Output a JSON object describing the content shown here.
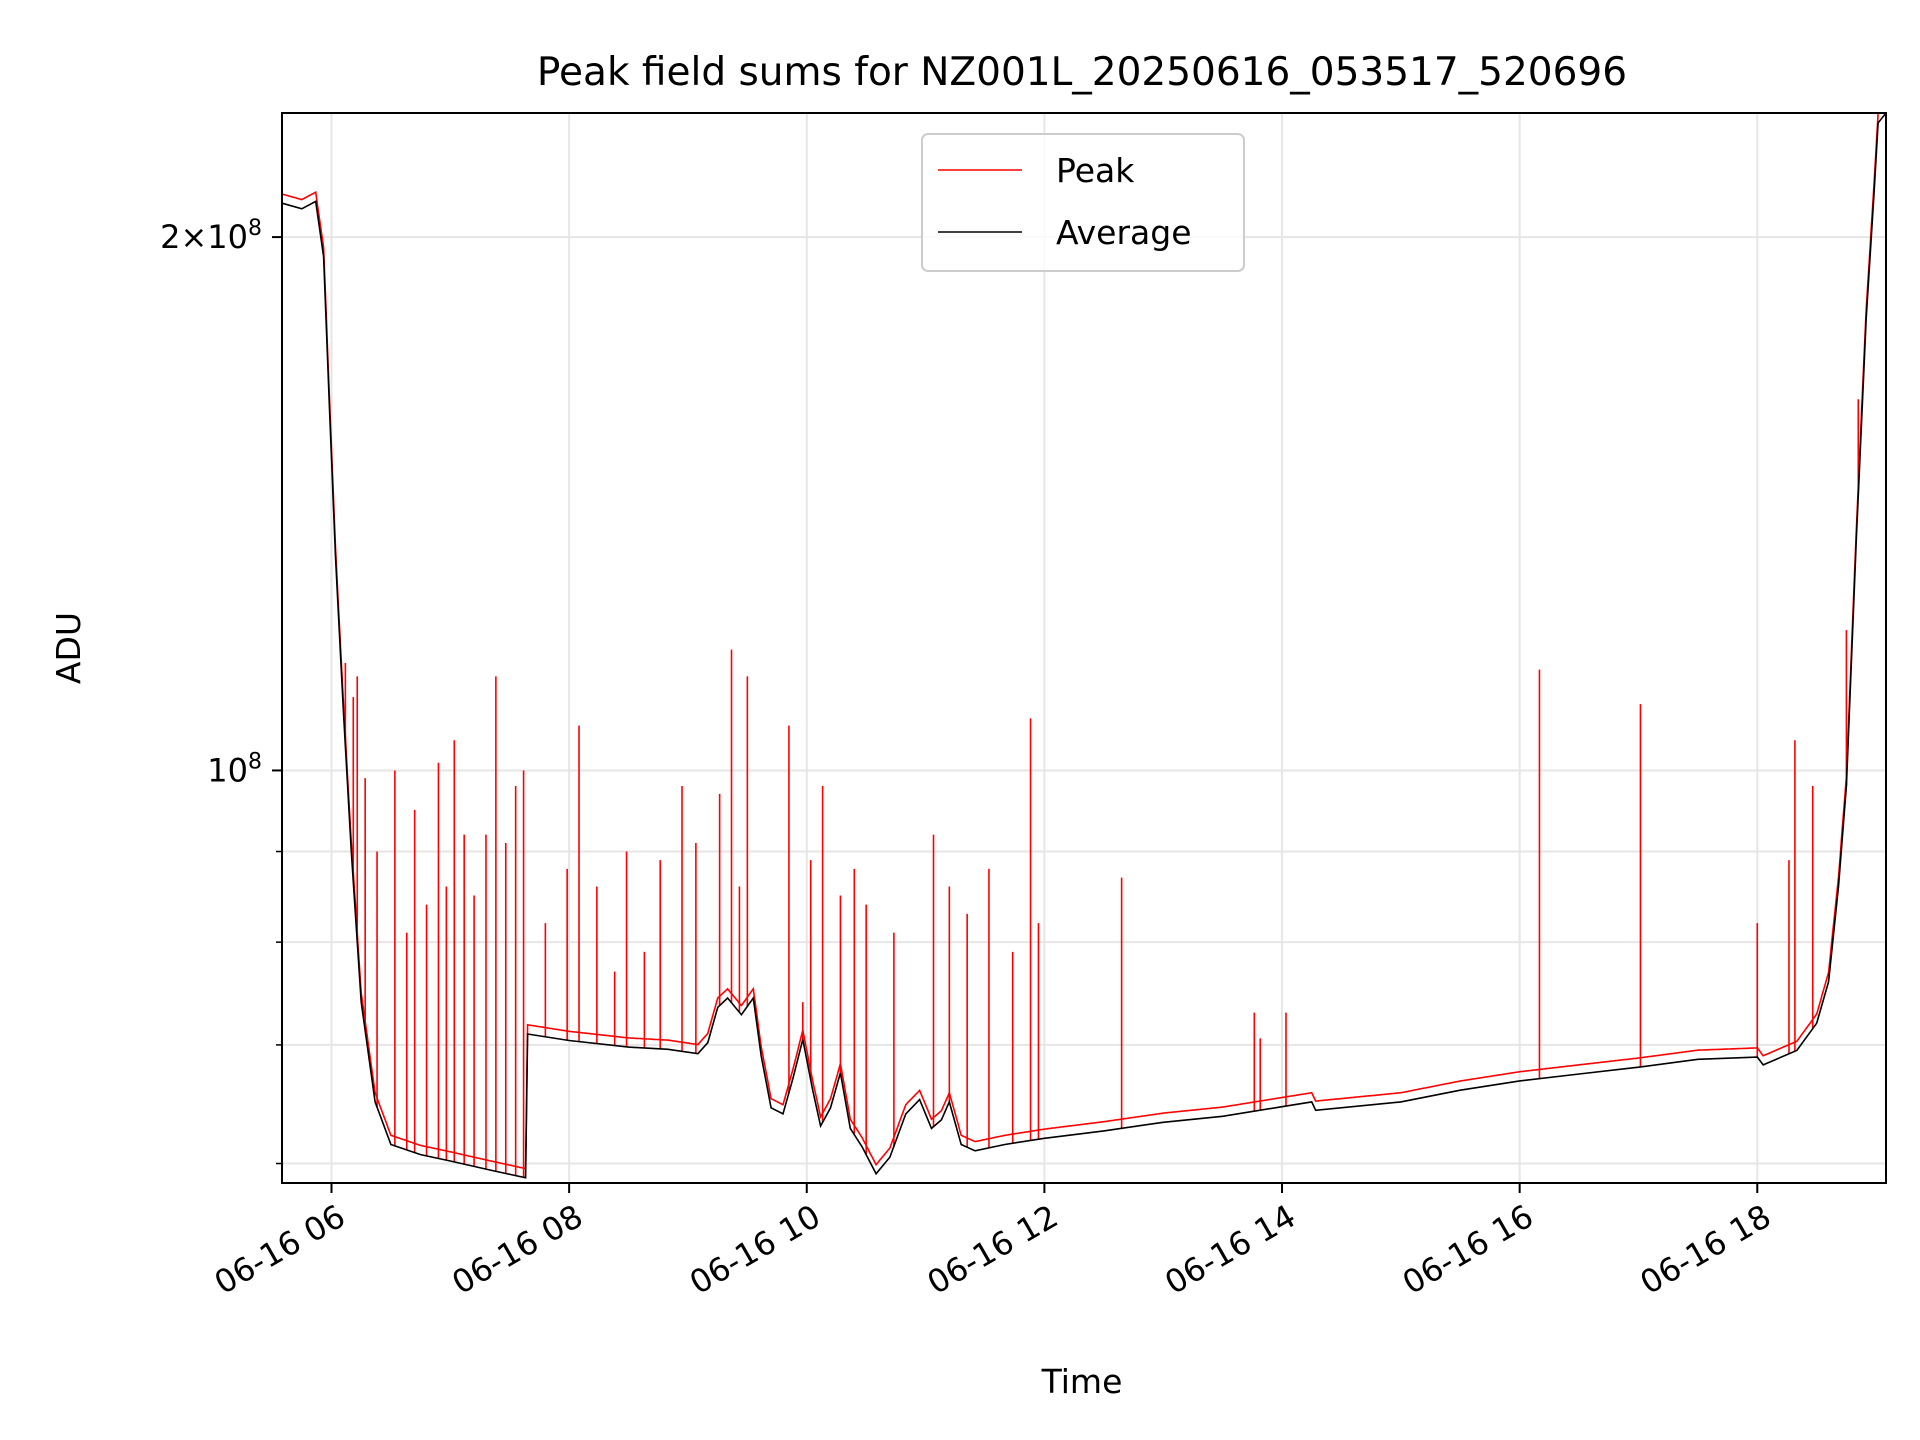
{
  "chart_data": {
    "type": "line",
    "title": "Peak field sums for NZ001L_20250616_053517_520696",
    "xlabel": "Time",
    "ylabel": "ADU",
    "yscale": "log",
    "xlim": [
      "2025-06-16T05:35",
      "2025-06-16T19:05"
    ],
    "ylim": [
      58500000,
      235000000
    ],
    "grid": true,
    "legend_position": "top-center",
    "x_tick_labels": [
      "06-16 06",
      "06-16 08",
      "06-16 10",
      "06-16 12",
      "06-16 14",
      "06-16 16",
      "06-16 18"
    ],
    "x_ticks": [
      "2025-06-16T06:00",
      "2025-06-16T08:00",
      "2025-06-16T10:00",
      "2025-06-16T12:00",
      "2025-06-16T14:00",
      "2025-06-16T16:00",
      "2025-06-16T18:00"
    ],
    "y_major_ticks": [
      {
        "value": 100000000,
        "base": "10",
        "exp": "8",
        "coef": ""
      },
      {
        "value": 200000000,
        "base": "10",
        "exp": "8",
        "coef": "2×"
      }
    ],
    "y_minor_ticks": [
      60000000,
      70000000,
      80000000,
      90000000
    ],
    "series": [
      {
        "name": "Average",
        "color": "#000000",
        "points": [
          [
            "05:35",
            209000000
          ],
          [
            "05:45",
            207500000
          ],
          [
            "05:52",
            209500000
          ],
          [
            "05:56",
            195000000
          ],
          [
            "05:59",
            160000000
          ],
          [
            "06:02",
            132000000
          ],
          [
            "06:06",
            108000000
          ],
          [
            "06:10",
            90000000
          ],
          [
            "06:15",
            74000000
          ],
          [
            "06:22",
            65000000
          ],
          [
            "06:30",
            61500000
          ],
          [
            "06:45",
            60700000
          ],
          [
            "07:00",
            60200000
          ],
          [
            "07:20",
            59500000
          ],
          [
            "07:38",
            58900000
          ],
          [
            "07:39",
            71000000
          ],
          [
            "08:00",
            70400000
          ],
          [
            "08:30",
            69800000
          ],
          [
            "08:50",
            69600000
          ],
          [
            "09:05",
            69200000
          ],
          [
            "09:10",
            70200000
          ],
          [
            "09:15",
            73500000
          ],
          [
            "09:20",
            74400000
          ],
          [
            "09:27",
            72800000
          ],
          [
            "09:33",
            74400000
          ],
          [
            "09:37",
            69000000
          ],
          [
            "09:42",
            64500000
          ],
          [
            "09:48",
            64000000
          ],
          [
            "09:53",
            67000000
          ],
          [
            "09:58",
            70500000
          ],
          [
            "10:03",
            66000000
          ],
          [
            "10:07",
            63000000
          ],
          [
            "10:12",
            64500000
          ],
          [
            "10:17",
            67500000
          ],
          [
            "10:22",
            62800000
          ],
          [
            "10:28",
            61300000
          ],
          [
            "10:35",
            59200000
          ],
          [
            "10:42",
            60500000
          ],
          [
            "10:50",
            64000000
          ],
          [
            "10:57",
            65200000
          ],
          [
            "11:03",
            62800000
          ],
          [
            "11:08",
            63500000
          ],
          [
            "11:12",
            65000000
          ],
          [
            "11:18",
            61500000
          ],
          [
            "11:25",
            61000000
          ],
          [
            "11:40",
            61500000
          ],
          [
            "12:00",
            62000000
          ],
          [
            "12:30",
            62600000
          ],
          [
            "13:00",
            63300000
          ],
          [
            "13:30",
            63800000
          ],
          [
            "14:00",
            64600000
          ],
          [
            "14:15",
            65000000
          ],
          [
            "14:17",
            64300000
          ],
          [
            "15:00",
            65000000
          ],
          [
            "15:30",
            66000000
          ],
          [
            "16:00",
            66800000
          ],
          [
            "16:30",
            67400000
          ],
          [
            "17:00",
            68000000
          ],
          [
            "17:30",
            68700000
          ],
          [
            "18:00",
            68900000
          ],
          [
            "18:03",
            68200000
          ],
          [
            "18:20",
            69500000
          ],
          [
            "18:30",
            72000000
          ],
          [
            "18:36",
            76000000
          ],
          [
            "18:41",
            86000000
          ],
          [
            "18:45",
            98000000
          ],
          [
            "18:50",
            135000000
          ],
          [
            "18:55",
            180000000
          ],
          [
            "18:59",
            212000000
          ],
          [
            "19:01",
            232000000
          ],
          [
            "19:05",
            235000000
          ]
        ]
      },
      {
        "name": "Peak",
        "color": "#ff0000",
        "spikes": [
          [
            "06:07",
            115000000
          ],
          [
            "06:11",
            110000000
          ],
          [
            "06:13",
            113000000
          ],
          [
            "06:17",
            99000000
          ],
          [
            "06:23",
            90000000
          ],
          [
            "06:32",
            100000000
          ],
          [
            "06:38",
            81000000
          ],
          [
            "06:42",
            95000000
          ],
          [
            "06:48",
            84000000
          ],
          [
            "06:54",
            101000000
          ],
          [
            "06:58",
            86000000
          ],
          [
            "07:02",
            104000000
          ],
          [
            "07:07",
            92000000
          ],
          [
            "07:12",
            85000000
          ],
          [
            "07:18",
            92000000
          ],
          [
            "07:23",
            113000000
          ],
          [
            "07:28",
            91000000
          ],
          [
            "07:33",
            98000000
          ],
          [
            "07:37",
            100000000
          ],
          [
            "07:48",
            82000000
          ],
          [
            "07:59",
            88000000
          ],
          [
            "08:05",
            106000000
          ],
          [
            "08:14",
            86000000
          ],
          [
            "08:23",
            77000000
          ],
          [
            "08:29",
            90000000
          ],
          [
            "08:38",
            79000000
          ],
          [
            "08:46",
            89000000
          ],
          [
            "08:57",
            98000000
          ],
          [
            "09:04",
            91000000
          ],
          [
            "09:16",
            97000000
          ],
          [
            "09:22",
            117000000
          ],
          [
            "09:26",
            86000000
          ],
          [
            "09:30",
            113000000
          ],
          [
            "09:51",
            106000000
          ],
          [
            "09:58",
            74000000
          ],
          [
            "10:02",
            89000000
          ],
          [
            "10:08",
            98000000
          ],
          [
            "10:17",
            85000000
          ],
          [
            "10:24",
            88000000
          ],
          [
            "10:30",
            84000000
          ],
          [
            "10:44",
            81000000
          ],
          [
            "11:04",
            92000000
          ],
          [
            "11:12",
            86000000
          ],
          [
            "11:21",
            83000000
          ],
          [
            "11:32",
            88000000
          ],
          [
            "11:44",
            79000000
          ],
          [
            "11:53",
            107000000
          ],
          [
            "11:57",
            82000000
          ],
          [
            "12:39",
            87000000
          ],
          [
            "13:46",
            73000000
          ],
          [
            "13:49",
            70600000
          ],
          [
            "14:02",
            73000000
          ],
          [
            "16:10",
            114000000
          ],
          [
            "17:01",
            109000000
          ],
          [
            "18:00",
            82000000
          ],
          [
            "18:16",
            89000000
          ],
          [
            "18:19",
            104000000
          ],
          [
            "18:28",
            98000000
          ],
          [
            "18:45",
            120000000
          ],
          [
            "18:51",
            162000000
          ]
        ]
      }
    ]
  }
}
